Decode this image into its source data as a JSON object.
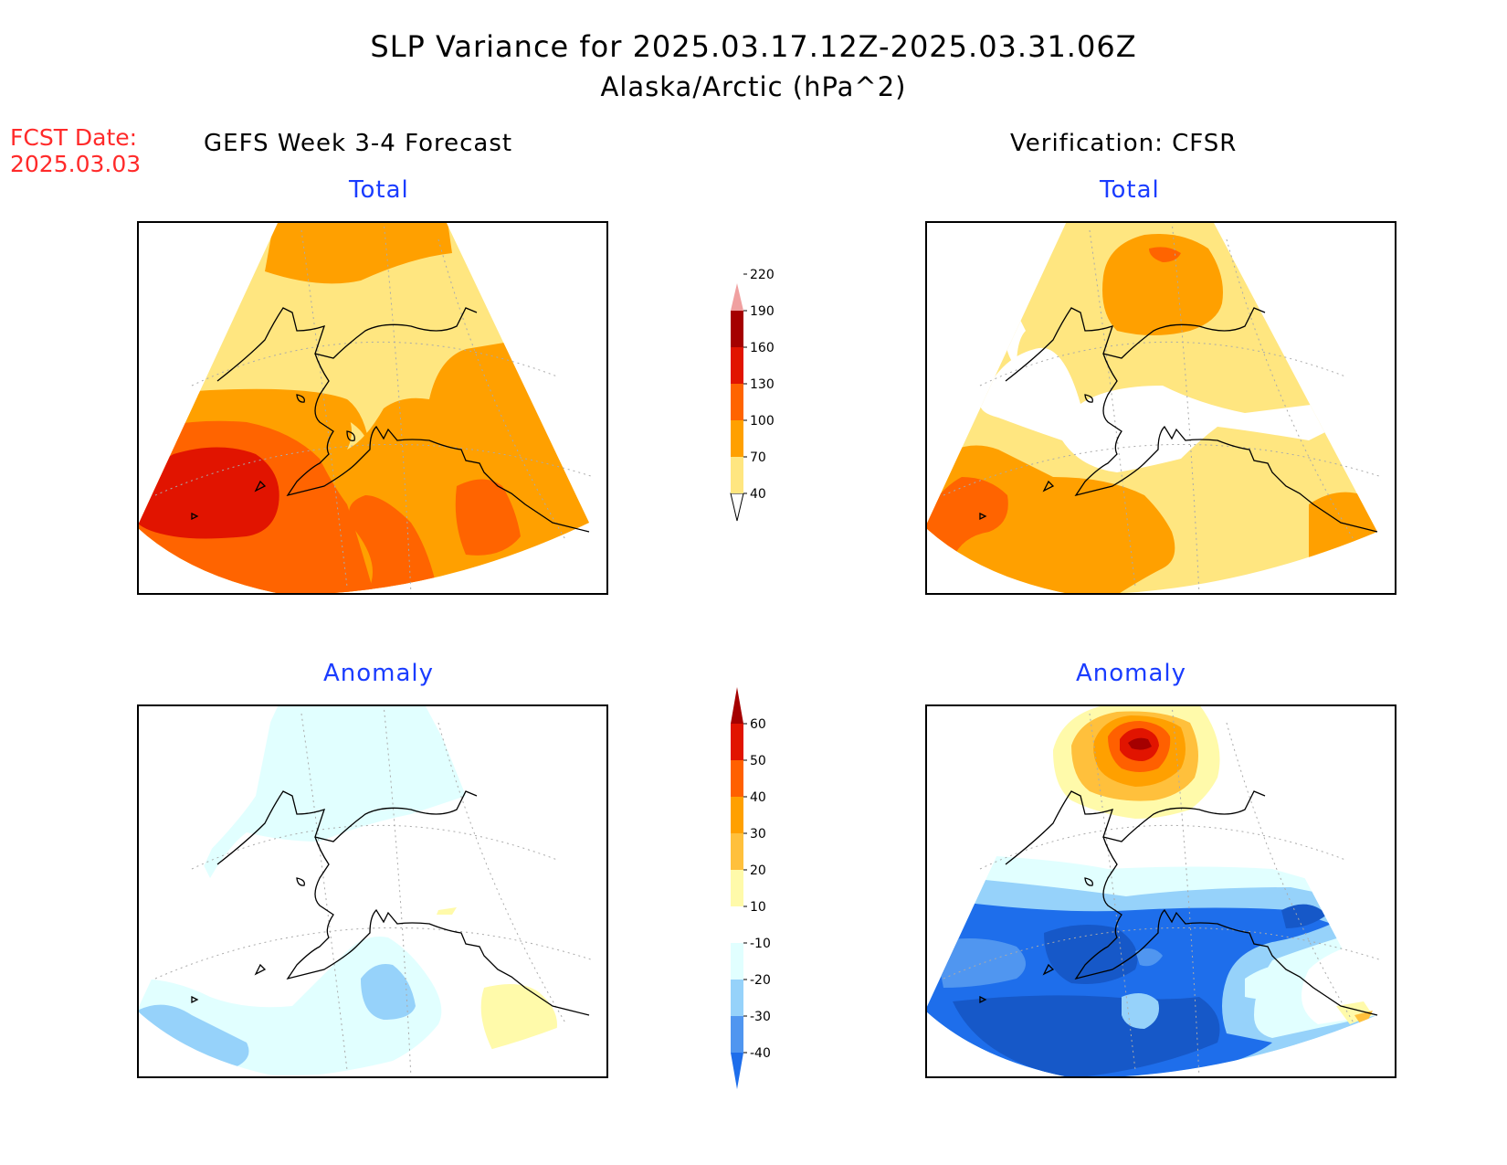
{
  "title": "SLP Variance for 2025.03.17.12Z-2025.03.31.06Z",
  "subtitle": "Alaska/Arctic (hPa^2)",
  "fcst_label": "FCST Date:",
  "fcst_date": "2025.03.03",
  "left_header": "GEFS Week 3-4 Forecast",
  "right_header": "Verification: CFSR",
  "panels": {
    "top_left": "Total",
    "top_right": "Total",
    "bottom_left": "Anomaly",
    "bottom_right": "Anomaly"
  },
  "colorbar_total": {
    "labels": [
      "40",
      "70",
      "100",
      "130",
      "160",
      "190",
      "220"
    ],
    "colors": [
      "#ffe680",
      "#ffa000",
      "#ff6400",
      "#e11400",
      "#a50000",
      "#f0a0a0",
      "#fde0dc"
    ]
  },
  "colorbar_anomaly": {
    "labels": [
      "-40",
      "-30",
      "-20",
      "-10",
      "10",
      "20",
      "30",
      "40",
      "50",
      "60"
    ],
    "colors": [
      "#1e6eeb",
      "#5096f0",
      "#96d2fa",
      "#e1ffff",
      "#ffffff",
      "#fffaaa",
      "#ffc03c",
      "#ffa000",
      "#ff6000",
      "#e11400",
      "#a50000"
    ]
  },
  "colors": {
    "title_red": "#ff2a2a",
    "subtitle_blue": "#1a3cff"
  }
}
